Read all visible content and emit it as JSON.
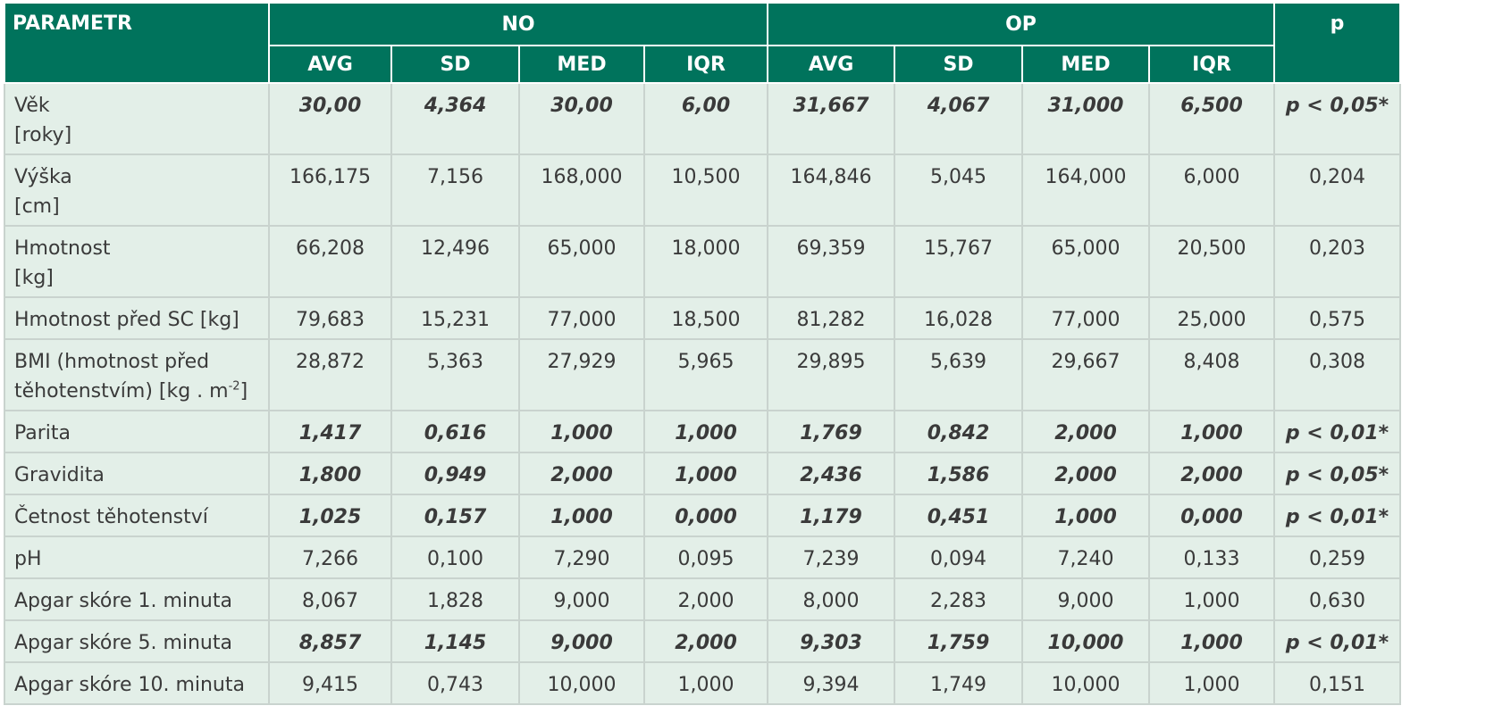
{
  "table": {
    "header": {
      "parameter": "PARAMETR",
      "groups": [
        "NO",
        "OP"
      ],
      "p": "p",
      "subheaders": [
        "AVG",
        "SD",
        "MED",
        "IQR",
        "AVG",
        "SD",
        "MED",
        "IQR"
      ]
    },
    "rows": [
      {
        "label": [
          [
            {
              "text": "Věk"
            }
          ],
          [
            {
              "text": "[roky]"
            }
          ]
        ],
        "highlight": true,
        "cells": [
          "30,00",
          "4,364",
          "30,00",
          "6,00",
          "31,667",
          "4,067",
          "31,000",
          "6,500",
          "p < 0,05*"
        ]
      },
      {
        "label": [
          [
            {
              "text": "Výška"
            }
          ],
          [
            {
              "text": "[cm]"
            }
          ]
        ],
        "highlight": false,
        "cells": [
          "166,175",
          "7,156",
          "168,000",
          "10,500",
          "164,846",
          "5,045",
          "164,000",
          "6,000",
          "0,204"
        ]
      },
      {
        "label": [
          [
            {
              "text": "Hmotnost"
            }
          ],
          [
            {
              "text": "[kg]"
            }
          ]
        ],
        "highlight": false,
        "cells": [
          "66,208",
          "12,496",
          "65,000",
          "18,000",
          "69,359",
          "15,767",
          "65,000",
          "20,500",
          "0,203"
        ]
      },
      {
        "label": [
          [
            {
              "text": "Hmotnost před SC [kg]"
            }
          ]
        ],
        "highlight": false,
        "cells": [
          "79,683",
          "15,231",
          "77,000",
          "18,500",
          "81,282",
          "16,028",
          "77,000",
          "25,000",
          "0,575"
        ]
      },
      {
        "label": [
          [
            {
              "text": "BMI (hmotnost před"
            }
          ],
          [
            {
              "text": "těhotenstvím) [kg . m"
            },
            {
              "text": "-2",
              "style": "sup"
            },
            {
              "text": "]"
            }
          ]
        ],
        "highlight": false,
        "cells": [
          "28,872",
          "5,363",
          "27,929",
          "5,965",
          "29,895",
          "5,639",
          "29,667",
          "8,408",
          "0,308"
        ]
      },
      {
        "label": [
          [
            {
              "text": "Parita"
            }
          ]
        ],
        "highlight": true,
        "cells": [
          "1,417",
          "0,616",
          "1,000",
          "1,000",
          "1,769",
          "0,842",
          "2,000",
          "1,000",
          "p < 0,01*"
        ]
      },
      {
        "label": [
          [
            {
              "text": "Gravidita"
            }
          ]
        ],
        "highlight": true,
        "cells": [
          "1,800",
          "0,949",
          "2,000",
          "1,000",
          "2,436",
          "1,586",
          "2,000",
          "2,000",
          "p < 0,05*"
        ]
      },
      {
        "label": [
          [
            {
              "text": "Četnost těhotenství"
            }
          ]
        ],
        "highlight": true,
        "cells": [
          "1,025",
          "0,157",
          "1,000",
          "0,000",
          "1,179",
          "0,451",
          "1,000",
          "0,000",
          "p < 0,01*"
        ]
      },
      {
        "label": [
          [
            {
              "text": "pH"
            }
          ]
        ],
        "highlight": false,
        "cells": [
          "7,266",
          "0,100",
          "7,290",
          "0,095",
          "7,239",
          "0,094",
          "7,240",
          "0,133",
          "0,259"
        ]
      },
      {
        "label": [
          [
            {
              "text": "Apgar skóre 1. minuta"
            }
          ]
        ],
        "highlight": false,
        "cells": [
          "8,067",
          "1,828",
          "9,000",
          "2,000",
          "8,000",
          "2,283",
          "9,000",
          "1,000",
          "0,630"
        ]
      },
      {
        "label": [
          [
            {
              "text": "Apgar skóre 5. minuta"
            }
          ]
        ],
        "highlight": true,
        "cells": [
          "8,857",
          "1,145",
          "9,000",
          "2,000",
          "9,303",
          "1,759",
          "10,000",
          "1,000",
          "p < 0,01*"
        ]
      },
      {
        "label": [
          [
            {
              "text": "Apgar skóre 10. minuta"
            }
          ]
        ],
        "highlight": false,
        "cells": [
          "9,415",
          "0,743",
          "10,000",
          "1,000",
          "9,394",
          "1,749",
          "10,000",
          "1,000",
          "0,151"
        ]
      }
    ]
  }
}
